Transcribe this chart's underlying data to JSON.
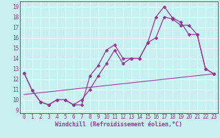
{
  "xlabel": "Windchill (Refroidissement éolien,°C)",
  "bg_color": "#c8f0f0",
  "line_color": "#993399",
  "grid_color": "#aadddd",
  "spine_color": "#993399",
  "xlim": [
    -0.5,
    23.5
  ],
  "ylim": [
    8.7,
    19.5
  ],
  "yticks": [
    9,
    10,
    11,
    12,
    13,
    14,
    15,
    16,
    17,
    18,
    19
  ],
  "xticks": [
    0,
    1,
    2,
    3,
    4,
    5,
    6,
    7,
    8,
    9,
    10,
    11,
    12,
    13,
    14,
    15,
    16,
    17,
    18,
    19,
    20,
    21,
    22,
    23
  ],
  "line1_x": [
    0,
    1,
    2,
    3,
    4,
    5,
    6,
    7,
    8,
    9,
    10,
    11,
    12,
    13,
    14,
    15,
    16,
    17,
    18,
    19,
    20,
    21,
    22,
    23
  ],
  "line1_y": [
    12.6,
    10.9,
    9.8,
    9.5,
    10.0,
    10.0,
    9.5,
    9.5,
    12.3,
    13.3,
    14.8,
    15.3,
    14.0,
    14.0,
    14.0,
    15.5,
    18.0,
    19.0,
    17.9,
    17.5,
    16.3,
    16.3,
    13.0,
    12.5
  ],
  "line2_x": [
    0,
    1,
    2,
    3,
    4,
    5,
    6,
    7,
    8,
    9,
    10,
    11,
    12,
    13,
    14,
    15,
    16,
    17,
    18,
    19,
    20,
    21,
    22,
    23
  ],
  "line2_y": [
    12.6,
    10.9,
    9.8,
    9.5,
    10.0,
    10.0,
    9.5,
    10.0,
    11.0,
    12.3,
    13.5,
    14.8,
    13.5,
    14.0,
    14.0,
    15.5,
    16.0,
    18.0,
    17.8,
    17.2,
    17.2,
    16.3,
    13.0,
    12.5
  ],
  "line3_x": [
    0,
    23
  ],
  "line3_y": [
    10.5,
    12.5
  ],
  "font_size_label": 6,
  "font_size_tick": 5.5,
  "marker_size": 2.5,
  "line_width": 0.9
}
